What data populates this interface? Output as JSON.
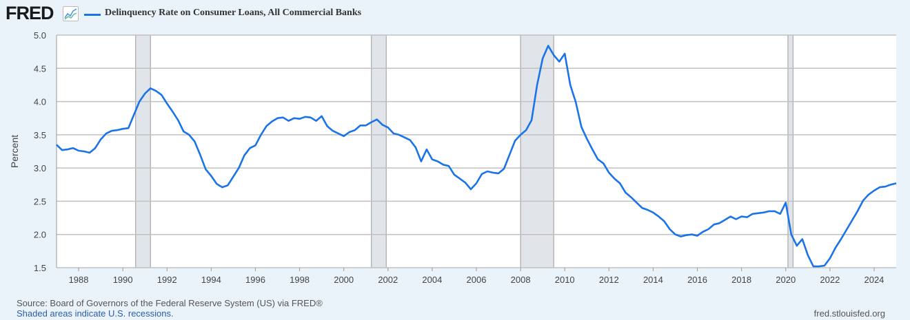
{
  "header": {
    "logo": "FRED",
    "title": "Delinquency Rate on Consumer Loans, All Commercial Banks"
  },
  "footer": {
    "source": "Source: Board of Governors of the Federal Reserve System (US) via FRED®",
    "recession_note": "Shaded areas indicate U.S. recessions.",
    "site": "fred.stlouisfed.org"
  },
  "colors": {
    "line": "#1a73e8",
    "recession": "#e1e5ea",
    "grid": "#c0c0c0"
  },
  "chart_data": {
    "type": "line",
    "title": "Delinquency Rate on Consumer Loans, All Commercial Banks",
    "xlabel": "",
    "ylabel": "Percent",
    "ylim": [
      1.5,
      5.0
    ],
    "xlim": [
      1987.0,
      2025.0
    ],
    "yticks": [
      "1.5",
      "2.0",
      "2.5",
      "3.0",
      "3.5",
      "4.0",
      "4.5",
      "5.0"
    ],
    "xticks": [
      "1988",
      "1990",
      "1992",
      "1994",
      "1996",
      "1998",
      "2000",
      "2002",
      "2004",
      "2006",
      "2008",
      "2010",
      "2012",
      "2014",
      "2016",
      "2018",
      "2020",
      "2022",
      "2024"
    ],
    "start": 1987.0,
    "step": 0.25,
    "values": [
      3.35,
      3.27,
      3.28,
      3.3,
      3.26,
      3.25,
      3.23,
      3.3,
      3.43,
      3.52,
      3.56,
      3.57,
      3.59,
      3.6,
      3.8,
      4.0,
      4.12,
      4.2,
      4.16,
      4.1,
      3.97,
      3.85,
      3.72,
      3.55,
      3.5,
      3.4,
      3.2,
      2.98,
      2.88,
      2.76,
      2.71,
      2.74,
      2.87,
      3.0,
      3.19,
      3.3,
      3.34,
      3.5,
      3.63,
      3.7,
      3.75,
      3.76,
      3.71,
      3.75,
      3.74,
      3.77,
      3.76,
      3.71,
      3.78,
      3.63,
      3.56,
      3.52,
      3.48,
      3.54,
      3.57,
      3.64,
      3.64,
      3.69,
      3.73,
      3.65,
      3.61,
      3.52,
      3.5,
      3.46,
      3.42,
      3.31,
      3.1,
      3.28,
      3.13,
      3.1,
      3.05,
      3.03,
      2.9,
      2.84,
      2.78,
      2.68,
      2.77,
      2.91,
      2.95,
      2.93,
      2.92,
      2.99,
      3.2,
      3.41,
      3.5,
      3.57,
      3.72,
      4.25,
      4.65,
      4.84,
      4.7,
      4.6,
      4.72,
      4.25,
      3.99,
      3.62,
      3.44,
      3.28,
      3.13,
      3.07,
      2.93,
      2.84,
      2.77,
      2.63,
      2.56,
      2.48,
      2.4,
      2.37,
      2.33,
      2.27,
      2.2,
      2.08,
      2.0,
      1.97,
      1.99,
      2.0,
      1.98,
      2.04,
      2.08,
      2.15,
      2.17,
      2.22,
      2.27,
      2.23,
      2.27,
      2.26,
      2.31,
      2.32,
      2.33,
      2.35,
      2.35,
      2.31,
      2.48,
      2.0,
      1.83,
      1.93,
      1.69,
      1.52,
      1.52,
      1.53,
      1.64,
      1.8,
      1.93,
      2.07,
      2.21,
      2.35,
      2.51,
      2.6,
      2.66,
      2.71,
      2.72,
      2.75,
      2.77
    ],
    "recessions": [
      [
        1990.58,
        1991.25
      ],
      [
        2001.25,
        2001.92
      ],
      [
        2008.0,
        2009.5
      ],
      [
        2020.1,
        2020.33
      ]
    ],
    "legend": "top-left"
  }
}
